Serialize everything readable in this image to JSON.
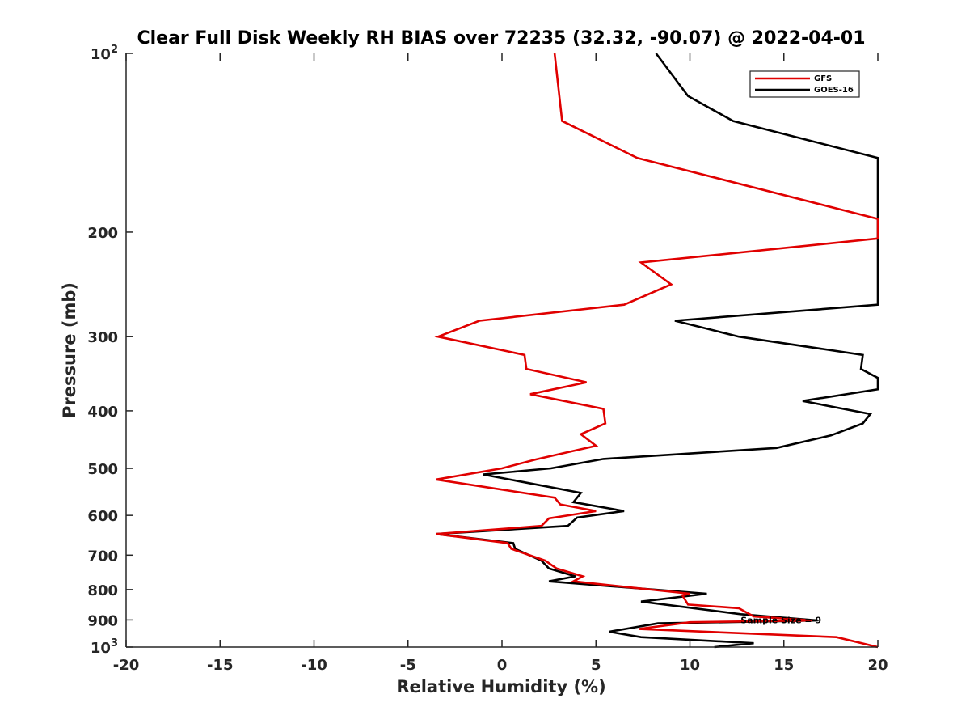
{
  "chart_data": {
    "type": "line",
    "title": "Clear Full Disk Weekly RH BIAS over 72235 (32.32, -90.07) @ 2022-04-01",
    "xlabel": "Relative Humidity (%)",
    "ylabel": "Pressure (mb)",
    "xlim": [
      -20,
      20
    ],
    "ylim": [
      100,
      1000
    ],
    "yscale": "log",
    "x_ticks": [
      -20,
      -15,
      -10,
      -5,
      0,
      5,
      10,
      15,
      20
    ],
    "y_ticks": [
      {
        "value": 100,
        "label": "10",
        "sup": "2"
      },
      {
        "value": 200,
        "label": "200"
      },
      {
        "value": 300,
        "label": "300"
      },
      {
        "value": 400,
        "label": "400"
      },
      {
        "value": 500,
        "label": "500"
      },
      {
        "value": 600,
        "label": "600"
      },
      {
        "value": 700,
        "label": "700"
      },
      {
        "value": 800,
        "label": "800"
      },
      {
        "value": 900,
        "label": "900"
      },
      {
        "value": 1000,
        "label": "10",
        "sup": "3"
      }
    ],
    "legend_position": "top-right",
    "annotation": {
      "text": "Sample Size = 9",
      "x": 12.7,
      "p": 900
    },
    "series": [
      {
        "name": "GFS",
        "color": "#e00000",
        "points": [
          [
            2.8,
            100
          ],
          [
            3.2,
            130
          ],
          [
            7.2,
            150
          ],
          [
            20.0,
            190
          ],
          [
            20.0,
            205
          ],
          [
            7.4,
            225
          ],
          [
            9.0,
            245
          ],
          [
            6.5,
            265
          ],
          [
            -1.2,
            282
          ],
          [
            -3.4,
            300
          ],
          [
            1.2,
            322
          ],
          [
            1.3,
            340
          ],
          [
            4.5,
            358
          ],
          [
            1.5,
            375
          ],
          [
            5.4,
            397
          ],
          [
            5.5,
            420
          ],
          [
            4.2,
            438
          ],
          [
            5.0,
            458
          ],
          [
            1.8,
            483
          ],
          [
            0.0,
            500
          ],
          [
            -3.5,
            522
          ],
          [
            2.8,
            560
          ],
          [
            3.1,
            575
          ],
          [
            5.0,
            590
          ],
          [
            2.5,
            607
          ],
          [
            2.1,
            625
          ],
          [
            -3.5,
            645
          ],
          [
            0.3,
            668
          ],
          [
            0.5,
            683
          ],
          [
            2.3,
            715
          ],
          [
            2.9,
            737
          ],
          [
            4.3,
            760
          ],
          [
            3.8,
            775
          ],
          [
            10.0,
            813
          ],
          [
            9.6,
            818
          ],
          [
            9.9,
            848
          ],
          [
            12.6,
            860
          ],
          [
            13.4,
            888
          ],
          [
            16.5,
            902
          ],
          [
            10.0,
            908
          ],
          [
            7.3,
            932
          ],
          [
            17.8,
            962
          ],
          [
            20.0,
            1000
          ]
        ]
      },
      {
        "name": "GOES-16",
        "color": "#000000",
        "points": [
          [
            8.2,
            100
          ],
          [
            9.9,
            118
          ],
          [
            12.3,
            130
          ],
          [
            20.0,
            150
          ],
          [
            20.0,
            265
          ],
          [
            9.2,
            282
          ],
          [
            12.6,
            300
          ],
          [
            19.2,
            322
          ],
          [
            19.1,
            340
          ],
          [
            20.0,
            352
          ],
          [
            20.0,
            368
          ],
          [
            16.0,
            385
          ],
          [
            19.6,
            405
          ],
          [
            19.2,
            420
          ],
          [
            17.5,
            440
          ],
          [
            14.6,
            462
          ],
          [
            5.4,
            482
          ],
          [
            2.6,
            500
          ],
          [
            -1.0,
            512
          ],
          [
            4.2,
            550
          ],
          [
            3.8,
            570
          ],
          [
            6.5,
            590
          ],
          [
            4.0,
            605
          ],
          [
            3.5,
            625
          ],
          [
            -3.5,
            645
          ],
          [
            0.6,
            668
          ],
          [
            0.7,
            683
          ],
          [
            2.1,
            715
          ],
          [
            2.5,
            737
          ],
          [
            3.9,
            760
          ],
          [
            2.5,
            775
          ],
          [
            10.9,
            813
          ],
          [
            7.4,
            838
          ],
          [
            12.7,
            880
          ],
          [
            16.8,
            902
          ],
          [
            8.3,
            912
          ],
          [
            5.7,
            942
          ],
          [
            7.4,
            962
          ],
          [
            13.4,
            985
          ],
          [
            11.3,
            1000
          ]
        ]
      }
    ]
  }
}
